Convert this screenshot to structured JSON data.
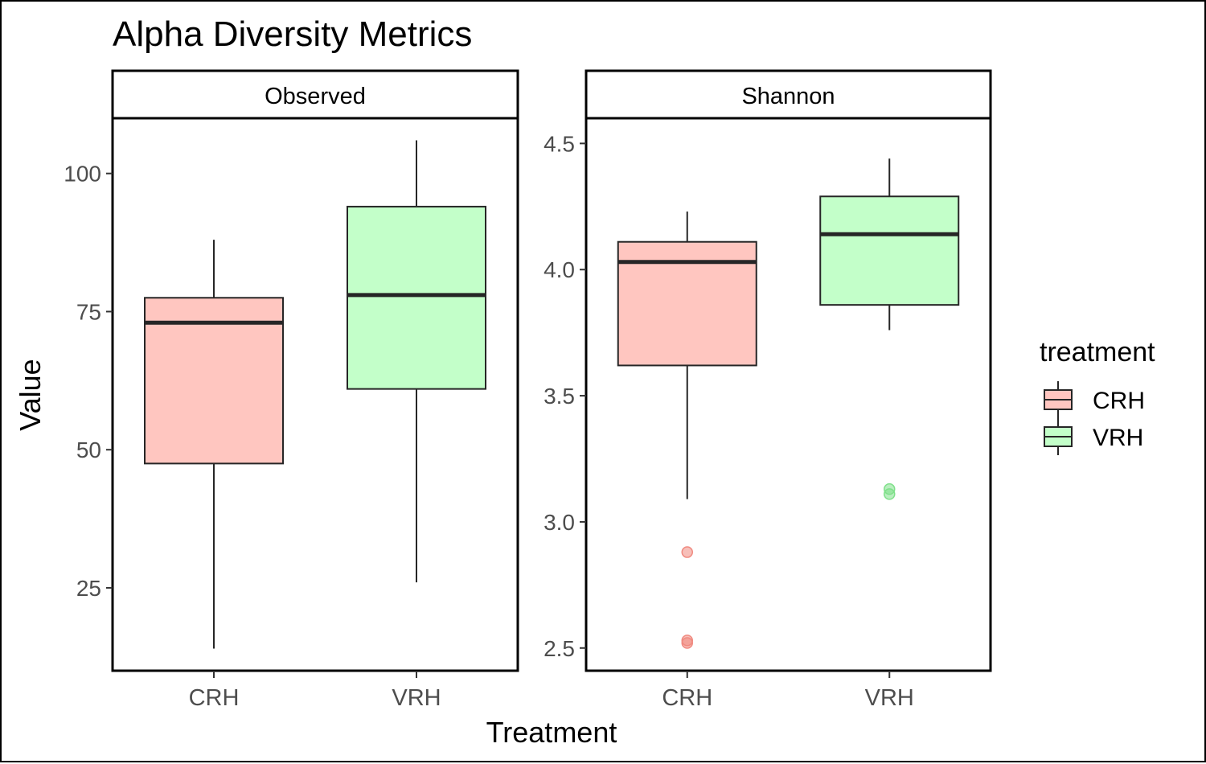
{
  "chart_data": {
    "type": "boxplot",
    "title": "Alpha Diversity Metrics",
    "xlabel": "Treatment",
    "ylabel": "Value",
    "legend": {
      "title": "treatment",
      "position": "right",
      "entries": [
        {
          "name": "CRH",
          "color": "#ffc6c0"
        },
        {
          "name": "VRH",
          "color": "#c3ffc9"
        }
      ]
    },
    "categories": [
      "CRH",
      "VRH"
    ],
    "grid": false,
    "facets": [
      {
        "label": "Observed",
        "ylim": [
          10,
          110
        ],
        "yticks": [
          25,
          50,
          75,
          100
        ],
        "ytick_labels": [
          "25",
          "50",
          "75",
          "100"
        ],
        "boxes": [
          {
            "group": "CRH",
            "whisker_low": 14,
            "q1": 47.5,
            "median": 73,
            "q3": 77.5,
            "whisker_high": 88,
            "outliers": []
          },
          {
            "group": "VRH",
            "whisker_low": 26,
            "q1": 61,
            "median": 78,
            "q3": 94,
            "whisker_high": 106,
            "outliers": []
          }
        ]
      },
      {
        "label": "Shannon",
        "ylim": [
          2.41,
          4.6
        ],
        "yticks": [
          2.5,
          3.0,
          3.5,
          4.0,
          4.5
        ],
        "ytick_labels": [
          "2.5",
          "3.0",
          "3.5",
          "4.0",
          "4.5"
        ],
        "boxes": [
          {
            "group": "CRH",
            "whisker_low": 3.09,
            "q1": 3.62,
            "median": 4.03,
            "q3": 4.11,
            "whisker_high": 4.23,
            "outliers": [
              2.88,
              2.53,
              2.52
            ]
          },
          {
            "group": "VRH",
            "whisker_low": 3.76,
            "q1": 3.86,
            "median": 4.14,
            "q3": 4.29,
            "whisker_high": 4.44,
            "outliers": [
              3.13,
              3.11
            ]
          }
        ]
      }
    ],
    "colors": {
      "CRH_fill": "#ffc6c0",
      "VRH_fill": "#c3ffc9",
      "CRH_point": "#f08a80",
      "VRH_point": "#7fe08a",
      "line": "#262626"
    }
  }
}
